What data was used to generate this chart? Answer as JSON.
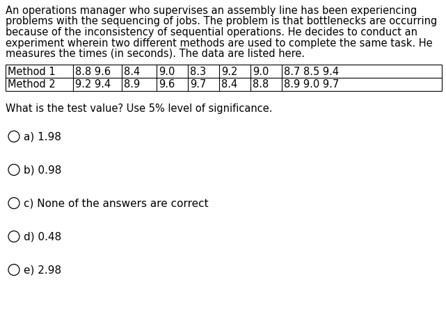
{
  "para_lines": [
    "An operations manager who supervises an assembly line has been experiencing",
    "problems with the sequencing of jobs. The problem is that bottlenecks are occurring",
    "because of the inconsistency of sequential operations. He decides to conduct an",
    "experiment wherein two different methods are used to complete the same task. He",
    "measures the times (in seconds). The data are listed here."
  ],
  "table_row1_label": "Method 1",
  "table_row2_label": "Method 2",
  "table_row1_cells": [
    "8.8 9.6",
    "8.4",
    "9.0",
    "8.3",
    "9.2",
    "9.0",
    "8.7 8.5 9.4"
  ],
  "table_row2_cells": [
    "9.2 9.4",
    "8.9",
    "9.6",
    "9.7",
    "8.4",
    "8.8",
    "8.9 9.0 9.7"
  ],
  "question": "What is the test value? Use 5% level of significance.",
  "options": [
    "a) 1.98",
    "b) 0.98",
    "c) None of the answers are correct",
    "d) 0.48",
    "e) 2.98"
  ],
  "bg_color": "#ffffff",
  "text_color": "#000000",
  "border_color": "#000000",
  "para_fontsize": 10.5,
  "table_fontsize": 10.5,
  "question_fontsize": 10.5,
  "option_fontsize": 11.0,
  "fig_width": 6.41,
  "fig_height": 4.56,
  "dpi": 100
}
